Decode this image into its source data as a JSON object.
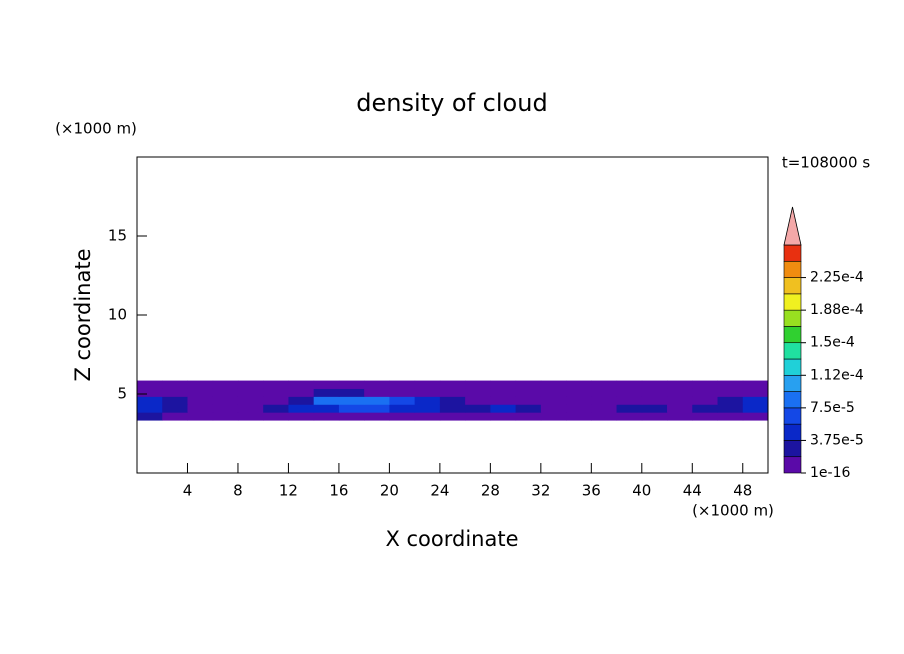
{
  "chart_data": {
    "type": "contour",
    "title": "density of cloud",
    "x_label": "X coordinate",
    "y_label": "Z coordinate",
    "x_unit": "(×1000 m)",
    "y_unit": "(×1000 m)",
    "time_label": "t=108000 s",
    "xlim": [
      0,
      50
    ],
    "ylim": [
      0,
      20
    ],
    "xticks": [
      4,
      8,
      12,
      16,
      20,
      24,
      28,
      32,
      36,
      40,
      44,
      48
    ],
    "yticks": [
      5,
      10,
      15
    ],
    "x": [
      1,
      3,
      5,
      7,
      9,
      11,
      13,
      15,
      17,
      19,
      21,
      23,
      25,
      27,
      29,
      31,
      33,
      35,
      37,
      39,
      41,
      43,
      45,
      47,
      49
    ],
    "y": [
      3.6,
      4.1,
      4.6,
      5.1,
      5.6
    ],
    "values": [
      [
        2.5e-05,
        1e-05,
        1e-05,
        1e-05,
        1e-05,
        1e-05,
        1e-05,
        1e-05,
        1e-05,
        1e-05,
        1e-05,
        1e-05,
        1e-05,
        1e-05,
        1e-05,
        1e-05,
        1e-05,
        1e-05,
        1e-05,
        1e-05,
        1e-05,
        1e-05,
        1e-05,
        1e-05,
        1e-05
      ],
      [
        4e-05,
        2.5e-05,
        1e-05,
        1e-05,
        1e-05,
        2.5e-05,
        4e-05,
        5e-05,
        6e-05,
        6e-05,
        5e-05,
        4e-05,
        2.5e-05,
        2.5e-05,
        4e-05,
        2.5e-05,
        1e-05,
        1e-05,
        1e-05,
        2.5e-05,
        2.5e-05,
        1e-05,
        2.5e-05,
        2.5e-05,
        4e-05
      ],
      [
        4e-05,
        2.5e-05,
        1e-05,
        1e-05,
        1e-05,
        1e-05,
        2.5e-05,
        8e-05,
        9e-05,
        8e-05,
        6e-05,
        4e-05,
        2.5e-05,
        1e-05,
        1e-05,
        1e-05,
        1e-05,
        1e-05,
        1e-05,
        1e-05,
        1e-05,
        1e-05,
        1e-05,
        2.5e-05,
        5e-05
      ],
      [
        1e-05,
        1e-05,
        1e-05,
        1e-05,
        1e-05,
        1e-05,
        1e-05,
        2.5e-05,
        2.5e-05,
        1e-05,
        1e-05,
        1e-05,
        1e-05,
        1e-05,
        1e-05,
        1e-05,
        1e-05,
        1e-05,
        1e-05,
        1e-05,
        1e-05,
        1e-05,
        1e-05,
        1e-05,
        1e-05
      ],
      [
        1e-05,
        1e-05,
        1e-05,
        1e-05,
        1e-05,
        1e-05,
        1e-05,
        1e-05,
        1e-05,
        1e-05,
        1e-05,
        1e-05,
        1e-05,
        1e-05,
        1e-05,
        1e-05,
        1e-05,
        1e-05,
        1e-05,
        1e-05,
        1e-05,
        1e-05,
        1e-05,
        1e-05,
        1e-05
      ]
    ],
    "levels": [
      1e-16,
      1.875e-05,
      3.75e-05,
      5.625e-05,
      7.5e-05,
      9.375e-05,
      0.0001125,
      0.00013125,
      0.00015,
      0.00016875,
      0.0001875,
      0.00020625,
      0.000225,
      0.00024375,
      0.0002625
    ],
    "level_colors": [
      "#5a0aa8",
      "#1c14a0",
      "#0a28c8",
      "#1448e6",
      "#1a70f2",
      "#28a0f0",
      "#20d0d8",
      "#20e0a0",
      "#30d030",
      "#98e020",
      "#f0f020",
      "#f0c020",
      "#f08c10",
      "#e83010"
    ],
    "extend_color": "#f4a8a8",
    "colorbar_ticks": [
      1e-16,
      {
        "value": 3.75e-05,
        "label": "3.75e-5"
      },
      {
        "value": 7.5e-05,
        "label": "7.5e-5"
      },
      {
        "value": 0.0001125,
        "label": "1.12e-4"
      },
      {
        "value": 0.00015,
        "label": "1.5e-4"
      },
      {
        "value": 0.0001875,
        "label": "1.88e-4"
      },
      {
        "value": 0.000225,
        "label": "2.25e-4"
      }
    ]
  }
}
